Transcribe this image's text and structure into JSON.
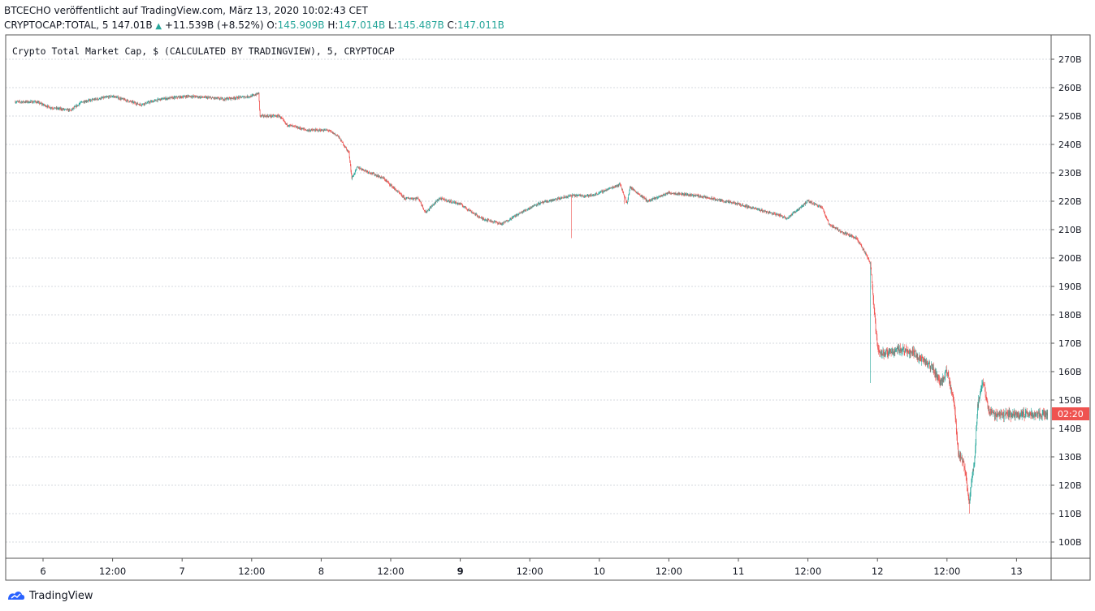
{
  "header": {
    "published_line": "BTCECHO veröffentlicht auf TradingView.com, März 13, 2020 10:02:43 CET",
    "symbol": "CRYPTOCAP:TOTAL, 5",
    "last": "147.01B",
    "change": "+11.539B (+8.52%)",
    "o_label": "O:",
    "o_value": "145.909B",
    "h_label": "H:",
    "h_value": "147.014B",
    "l_label": "L:",
    "l_value": "145.487B",
    "c_label": "C:",
    "c_value": "147.011B"
  },
  "chart_data": {
    "type": "candlestick",
    "title": "Crypto Total Market Cap, $ (CALCULATED BY TRADINGVIEW), 5, CRYPTOCAP",
    "x_ticks": [
      "6",
      "12:00",
      "7",
      "12:00",
      "8",
      "12:00",
      "9",
      "12:00",
      "10",
      "12:00",
      "11",
      "12:00",
      "12",
      "12:00",
      "13"
    ],
    "x_tick_bold": [
      false,
      false,
      false,
      false,
      false,
      false,
      true,
      false,
      false,
      false,
      false,
      false,
      false,
      false,
      false
    ],
    "y_ticks": [
      "270B",
      "260B",
      "250B",
      "240B",
      "230B",
      "220B",
      "210B",
      "200B",
      "190B",
      "180B",
      "170B",
      "160B",
      "150B",
      "140B",
      "130B",
      "120B",
      "110B",
      "100B"
    ],
    "ylim": [
      97,
      277
    ],
    "x_range_days": [
      5.8,
      13.25
    ],
    "grid": true,
    "price_marker": "02:20",
    "colors": {
      "up": "#26a69a",
      "down": "#ef5350",
      "marker": "#ef5350"
    },
    "price_path": [
      [
        5.8,
        255
      ],
      [
        5.95,
        255
      ],
      [
        6.05,
        253
      ],
      [
        6.2,
        252
      ],
      [
        6.28,
        255
      ],
      [
        6.5,
        257
      ],
      [
        6.7,
        254
      ],
      [
        6.85,
        256
      ],
      [
        7.05,
        257
      ],
      [
        7.3,
        256
      ],
      [
        7.5,
        257
      ],
      [
        7.55,
        258
      ],
      [
        7.56,
        250
      ],
      [
        7.7,
        250
      ],
      [
        7.75,
        247
      ],
      [
        7.9,
        245
      ],
      [
        8.05,
        245
      ],
      [
        8.12,
        243
      ],
      [
        8.2,
        237
      ],
      [
        8.22,
        228
      ],
      [
        8.26,
        232
      ],
      [
        8.45,
        228
      ],
      [
        8.6,
        221
      ],
      [
        8.7,
        221
      ],
      [
        8.75,
        216
      ],
      [
        8.85,
        221
      ],
      [
        9.0,
        219
      ],
      [
        9.15,
        214
      ],
      [
        9.3,
        212
      ],
      [
        9.4,
        215
      ],
      [
        9.55,
        219
      ],
      [
        9.8,
        222
      ],
      [
        9.95,
        222
      ],
      [
        10.05,
        224
      ],
      [
        10.15,
        226
      ],
      [
        10.22,
        225
      ],
      [
        10.2,
        219
      ],
      [
        10.35,
        220
      ],
      [
        10.5,
        223
      ],
      [
        10.7,
        222
      ],
      [
        10.9,
        220
      ],
      [
        11.0,
        219
      ],
      [
        11.15,
        217
      ],
      [
        11.3,
        215
      ],
      [
        11.35,
        214
      ],
      [
        11.45,
        218
      ],
      [
        11.5,
        220
      ],
      [
        11.6,
        218
      ],
      [
        11.65,
        212
      ],
      [
        11.75,
        209
      ],
      [
        11.85,
        207
      ],
      [
        11.92,
        201
      ],
      [
        11.95,
        198
      ],
      [
        11.97,
        185
      ],
      [
        12.0,
        168
      ],
      [
        12.05,
        166
      ],
      [
        12.15,
        168
      ],
      [
        12.25,
        167
      ],
      [
        12.4,
        161
      ],
      [
        12.45,
        156
      ],
      [
        12.5,
        160
      ],
      [
        12.55,
        150
      ],
      [
        12.58,
        132
      ],
      [
        12.62,
        128
      ],
      [
        12.66,
        114
      ],
      [
        12.7,
        130
      ],
      [
        12.72,
        148
      ],
      [
        12.76,
        157
      ],
      [
        12.8,
        146
      ],
      [
        12.85,
        145
      ]
    ],
    "wick_spikes": [
      {
        "x": 9.8,
        "low": 207
      },
      {
        "x": 10.18,
        "low": 219
      },
      {
        "x": 12.66,
        "low": 110
      },
      {
        "x": 11.95,
        "low": 156
      }
    ]
  },
  "footer": {
    "brand": "TradingView"
  }
}
